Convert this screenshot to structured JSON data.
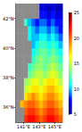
{
  "chart_data": {
    "type": "map",
    "xlim": [
      140,
      146
    ],
    "ylim": [
      35,
      43
    ],
    "xticks": [
      {
        "value": 141,
        "label": "141°E"
      },
      {
        "value": 143,
        "label": "143°E"
      },
      {
        "value": 145,
        "label": "145°E"
      }
    ],
    "yticks": [
      {
        "value": 36,
        "label": "36°N"
      },
      {
        "value": 38,
        "label": "38°N"
      },
      {
        "value": 40,
        "label": "40°N"
      },
      {
        "value": 42,
        "label": "42°N"
      }
    ],
    "cells": {
      "x": [
        140.25,
        140.75,
        141.25,
        141.75,
        142.25,
        142.75,
        143.25,
        143.75,
        144.25,
        144.75,
        145.25,
        145.75
      ],
      "y": [
        35.25,
        35.75,
        36.25,
        36.75,
        37.25,
        37.75,
        38.25,
        38.75,
        39.25,
        39.75,
        40.25,
        40.75,
        41.25,
        41.75,
        42.25,
        42.75
      ],
      "values": [
        [
          null,
          null,
          21,
          22,
          22,
          21,
          20,
          21,
          22,
          22,
          21,
          20
        ],
        [
          null,
          null,
          20,
          21,
          21,
          20,
          19,
          20,
          21,
          21,
          20,
          19
        ],
        [
          null,
          18,
          19,
          20,
          20,
          19,
          18,
          19,
          20,
          20,
          19,
          18
        ],
        [
          null,
          null,
          17,
          18,
          19,
          18,
          17,
          18,
          19,
          19,
          18,
          17
        ],
        [
          null,
          null,
          15,
          16,
          17,
          17,
          16,
          17,
          18,
          18,
          17,
          16
        ],
        [
          null,
          null,
          14,
          15,
          16,
          16,
          15,
          16,
          17,
          17,
          16,
          15
        ],
        [
          null,
          null,
          null,
          13,
          14,
          15,
          15,
          14,
          15,
          16,
          15,
          14
        ],
        [
          null,
          null,
          null,
          12,
          13,
          14,
          14,
          13,
          14,
          15,
          14,
          13
        ],
        [
          null,
          null,
          null,
          null,
          12,
          13,
          14,
          13,
          13,
          14,
          13,
          12
        ],
        [
          null,
          null,
          null,
          null,
          11,
          12,
          13,
          13,
          12,
          13,
          12,
          11
        ],
        [
          null,
          null,
          null,
          null,
          10,
          11,
          12,
          12,
          11,
          12,
          11,
          10
        ],
        [
          null,
          null,
          null,
          11,
          10,
          10,
          11,
          11,
          10,
          11,
          10,
          9
        ],
        [
          null,
          null,
          null,
          11,
          10,
          9,
          10,
          10,
          9,
          10,
          9,
          8
        ],
        [
          null,
          null,
          12,
          10,
          9,
          8,
          9,
          9,
          8,
          9,
          8,
          8
        ],
        [
          null,
          null,
          null,
          null,
          null,
          null,
          8,
          8,
          7,
          8,
          7,
          7
        ],
        [
          null,
          null,
          null,
          null,
          null,
          null,
          7,
          7,
          6,
          7,
          6,
          6
        ]
      ]
    },
    "colorbar": {
      "range": [
        5,
        25
      ],
      "ticks": [
        5,
        10,
        15,
        20,
        25
      ]
    }
  }
}
